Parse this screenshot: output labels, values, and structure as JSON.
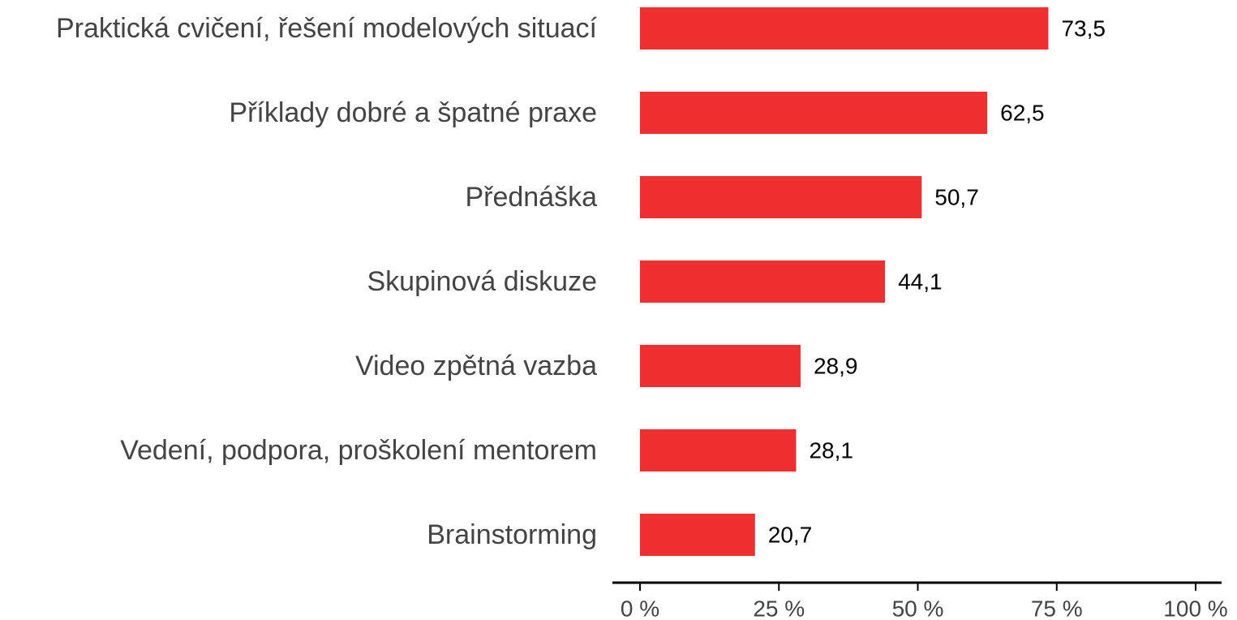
{
  "chart_data": {
    "type": "hbar",
    "categories": [
      "Praktická cvičení, řešení modelových situací",
      "Příklady dobré a špatné praxe",
      "Přednáška",
      "Skupinová diskuze",
      "Video zpětná vazba",
      "Vedení, podpora, proškolení mentorem",
      "Brainstorming"
    ],
    "values": [
      73.5,
      62.5,
      50.7,
      44.1,
      28.9,
      28.1,
      20.7
    ],
    "value_labels": [
      "73,5",
      "62,5",
      "50,7",
      "44,1",
      "28,9",
      "28,1",
      "20,7"
    ],
    "color": "#ee2e31",
    "xlim": [
      0,
      100
    ],
    "xticks": [
      {
        "value": 0,
        "label": "0 %"
      },
      {
        "value": 25,
        "label": "25 %"
      },
      {
        "value": 50,
        "label": "50 %"
      },
      {
        "value": 75,
        "label": "75 %"
      },
      {
        "value": 100,
        "label": "100 %"
      }
    ],
    "grid": false
  }
}
